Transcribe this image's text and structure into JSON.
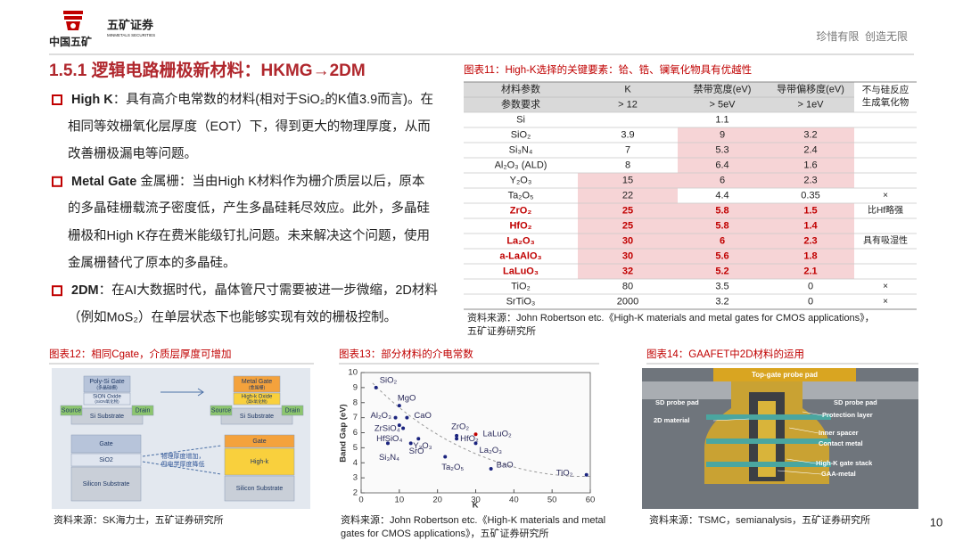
{
  "header": {
    "company": "中国五矿",
    "brand": "五矿证券",
    "brand_en": "MINMETALS SECURITIES",
    "slogan": "珍惜有限  创造无限"
  },
  "title": "1.5.1 逻辑电路栅极新材料：HKMG→2DM",
  "bullets": [
    {
      "label": "High K",
      "lines": [
        "：具有高介电常数的材料(相对于SiO₂的K值3.9而言)。在",
        "相同等效栅氧化层厚度（EOT）下，得到更大的物理厚度，从而",
        "改善栅极漏电等问题。"
      ]
    },
    {
      "label": "Metal Gate",
      "lines": [
        " 金属栅：当由High K材料作为栅介质层以后，原本",
        "的多晶硅栅载流子密度低，产生多晶硅耗尽效应。此外，多晶硅",
        "栅极和High K存在费米能级钉扎问题。未来解决这个问题，使用",
        "金属栅替代了原本的多晶硅。"
      ]
    },
    {
      "label": "2DM",
      "lines": [
        "：在AI大数据时代，晶体管尺寸需要被进一步微缩，2D材料",
        "（例如MoS₂）在单层状态下也能够实现有效的栅极控制。"
      ]
    }
  ],
  "table_figure": {
    "title": "图表11：High-K选择的关键要素：铪、锆、镧氧化物具有优越性",
    "header": [
      [
        "材料参数",
        "K",
        "禁带宽度(eV)",
        "导带偏移度(eV)",
        [
          "不与硅反应",
          "生成氧化物"
        ]
      ],
      [
        "参数要求",
        "> 12",
        "> 5eV",
        "> 1eV"
      ]
    ],
    "shade_color": "#f6d4d6",
    "emphasis_color": "#c00000",
    "rows": [
      {
        "cells": [
          "Si",
          null,
          1.1,
          null,
          null
        ],
        "shade": []
      },
      {
        "cells": [
          "SiO₂",
          3.9,
          9,
          3.2,
          null
        ],
        "shade": [
          2,
          3
        ]
      },
      {
        "cells": [
          "Si₃N₄",
          7,
          5.3,
          2.4,
          null
        ],
        "shade": [
          2,
          3
        ]
      },
      {
        "cells": [
          "Al₂O₃ (ALD)",
          8,
          6.4,
          1.6,
          null
        ],
        "shade": [
          2,
          3
        ]
      },
      {
        "cells": [
          "Y₂O₃",
          15,
          6,
          2.3,
          null
        ],
        "shade": [
          1,
          2,
          3
        ]
      },
      {
        "cells": [
          "Ta₂O₅",
          22,
          4.4,
          0.35,
          "×"
        ],
        "shade": [
          1
        ]
      },
      {
        "cells": [
          "ZrO₂",
          25,
          5.8,
          1.5,
          "比Hf略强"
        ],
        "shade": [
          1,
          2,
          3
        ],
        "emphasis": true
      },
      {
        "cells": [
          "HfO₂",
          25,
          5.8,
          1.4,
          null
        ],
        "shade": [
          1,
          2,
          3
        ],
        "emphasis": true
      },
      {
        "cells": [
          "La₂O₃",
          30,
          6,
          2.3,
          "具有吸湿性"
        ],
        "shade": [
          1,
          2,
          3
        ],
        "emphasis": true
      },
      {
        "cells": [
          "a-LaAlO₃",
          30,
          5.6,
          1.8,
          null
        ],
        "shade": [
          1,
          2,
          3
        ],
        "emphasis": true
      },
      {
        "cells": [
          "LaLuO₃",
          32,
          5.2,
          2.1,
          null
        ],
        "shade": [
          1,
          2,
          3
        ],
        "emphasis": true
      },
      {
        "cells": [
          "TiO₂",
          80,
          3.5,
          0,
          "×"
        ],
        "shade": []
      },
      {
        "cells": [
          "SrTiO₃",
          2000,
          3.2,
          0,
          "×"
        ],
        "shade": []
      }
    ],
    "source": [
      "资料来源：John Robertson etc.《High-K materials and metal gates for CMOS applications》，",
      "五矿证券研究所"
    ]
  },
  "figure12": {
    "title": "图表12：相同Cgate，介质层厚度可增加",
    "top_left": {
      "gate": "Poly-Si Gate",
      "gate_cn": "(多晶硅栅)",
      "oxide": "SiON Oxide",
      "oxide_cn": "(SiON氧化物)",
      "source": "Source",
      "drain": "Drain",
      "substrate": "Si Substrate"
    },
    "top_right": {
      "gate": "Metal Gate",
      "gate_cn": "(金属栅)",
      "oxide": "High-k Oxide",
      "oxide_cn": "(高k氧化物)",
      "source": "Source",
      "drain": "Drain",
      "substrate": "Si Substrate"
    },
    "bottom_left": [
      "Gate",
      "SiO2",
      "Silicon Substrate"
    ],
    "bottom_right": [
      "Gate",
      "High-k",
      "Silicon Substrate"
    ],
    "note": [
      "物理厚度增加，",
      "但电学厚度降低"
    ],
    "source": "资料来源：SK海力士，五矿证券研究所"
  },
  "figure13": {
    "title": "图表13：部分材料的介电常数",
    "chart": {
      "type": "scatter",
      "xlabel": "K",
      "ylabel": "Band Gap (eV)",
      "xlim": [
        0,
        60
      ],
      "ylim": [
        2,
        10
      ],
      "xticks": [
        0,
        10,
        20,
        30,
        40,
        50,
        60
      ],
      "yticks": [
        2,
        3,
        4,
        5,
        6,
        7,
        8,
        9,
        10
      ],
      "color": "#1a237e",
      "highlight_color": "#c00000",
      "points": [
        {
          "label": "SiO₂",
          "x": 3.9,
          "y": 9
        },
        {
          "label": "MgO",
          "x": 10,
          "y": 7.8
        },
        {
          "label": "Al₂O₃",
          "x": 9,
          "y": 7
        },
        {
          "label": "CaO",
          "x": 12,
          "y": 7
        },
        {
          "label": "ZrSiO₄",
          "x": 10,
          "y": 6.5
        },
        {
          "label": "HfSiO₄",
          "x": 11,
          "y": 6.3
        },
        {
          "label": "Y₂O₃",
          "x": 15,
          "y": 5.6
        },
        {
          "label": "ZrO₂",
          "x": 25,
          "y": 5.8
        },
        {
          "label": "HfO₂",
          "x": 25,
          "y": 5.6
        },
        {
          "label": "LaLuO₂",
          "x": 30,
          "y": 5.9,
          "highlight": true
        },
        {
          "label": "La₂O₃",
          "x": 30,
          "y": 5.3
        },
        {
          "label": "SrO",
          "x": 13,
          "y": 5.3
        },
        {
          "label": "Si₃N₄",
          "x": 7,
          "y": 5.3
        },
        {
          "label": "Ta₂O₅",
          "x": 22,
          "y": 4.4
        },
        {
          "label": "BaO",
          "x": 34,
          "y": 3.6
        },
        {
          "label": "TiO₂",
          "x": 59,
          "y": 3.2
        }
      ]
    },
    "source": [
      "资料来源：John Robertson etc.《High-K materials and metal",
      "gates for CMOS applications》，五矿证券研究所"
    ]
  },
  "figure14": {
    "title": "图表14：GAAFET中2D材料的运用",
    "labels": {
      "top": "Top-gate probe pad",
      "sd_left": "SD probe pad",
      "sd_right": "SD probe pad",
      "material": "2D material",
      "protection": "Protection layer",
      "spacer": "Inner spacer",
      "contact": "Contact metal",
      "gate_stack": "High-K gate stack",
      "gaa": "GAA-metal"
    },
    "source": "资料来源：TSMC，semianalysis，五矿证券研究所"
  },
  "page_number": "10"
}
